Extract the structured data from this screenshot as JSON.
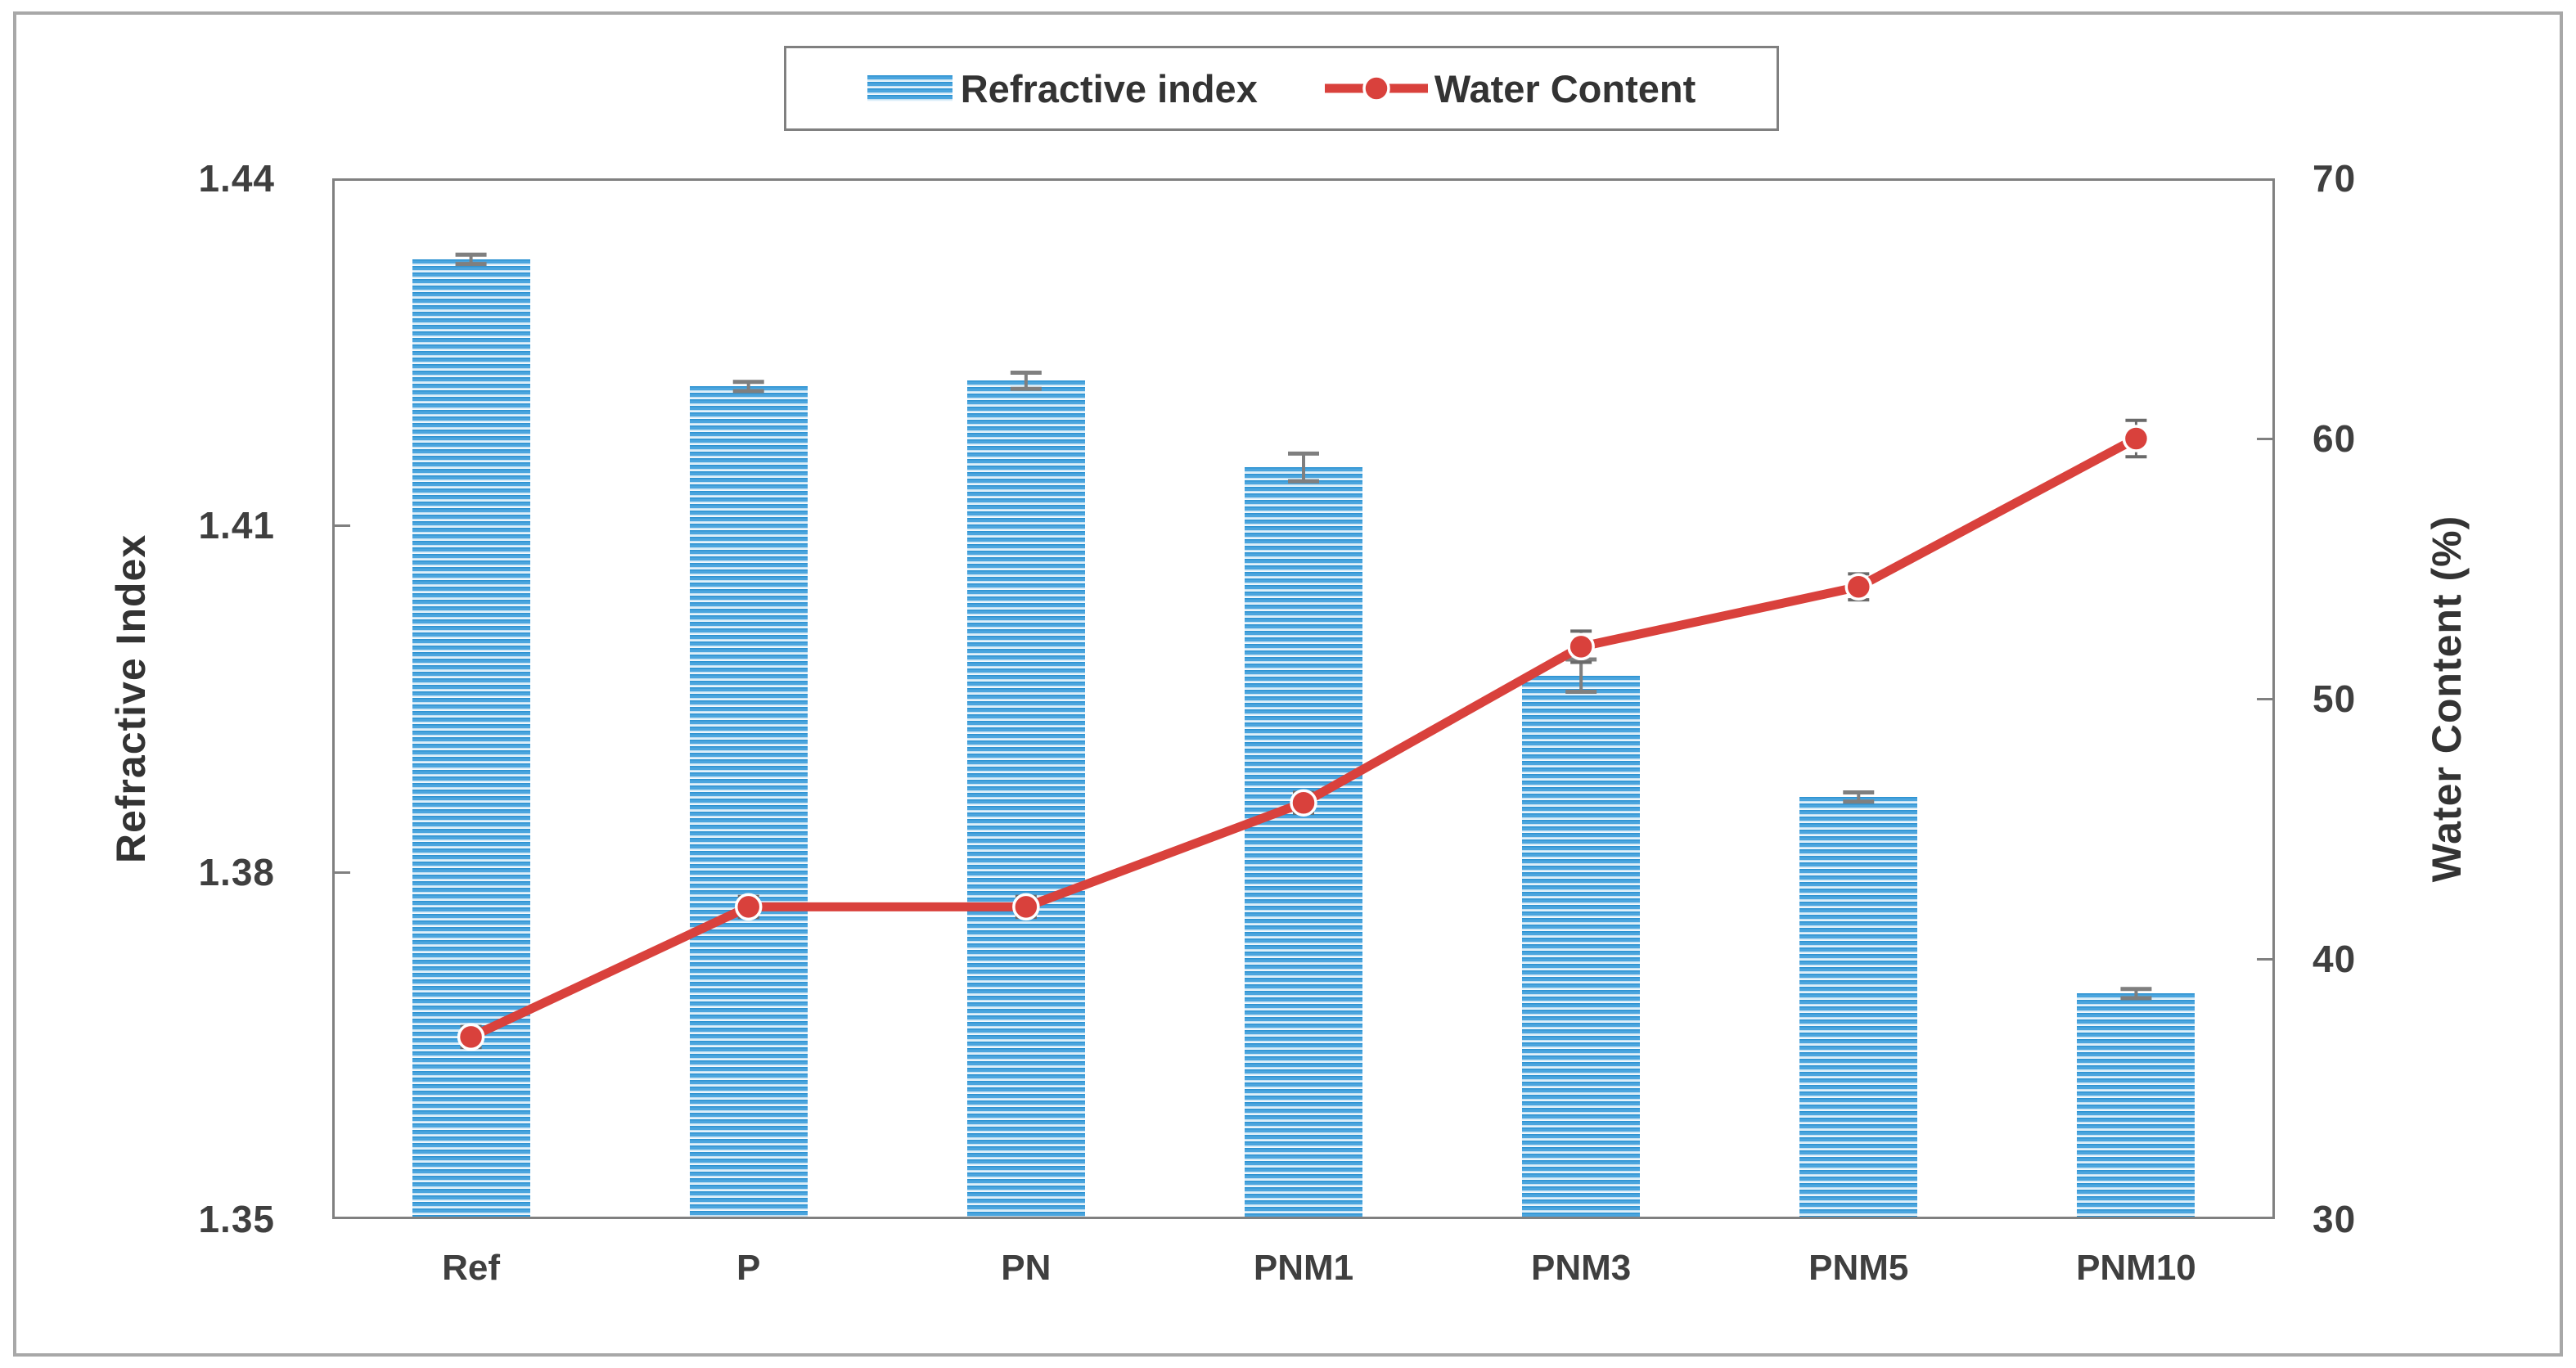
{
  "figure": {
    "background": "#ffffff",
    "outer_border_color": "#a8a8a8",
    "plot_border_color": "#808080",
    "error_bar_color": "#7f7f7f"
  },
  "legend": {
    "position": "top-center",
    "items": [
      {
        "label": "Refractive index",
        "swatch": "blue-striped-bar"
      },
      {
        "label": "Water Content",
        "swatch": "red-line-marker"
      }
    ]
  },
  "chart_data": {
    "type": "combo",
    "subtypes": [
      "bar",
      "line"
    ],
    "categories": [
      "Ref",
      "P",
      "PN",
      "PNM1",
      "PNM3",
      "PNM5",
      "PNM10"
    ],
    "series": [
      {
        "name": "Refractive index",
        "type": "bar",
        "axis": "left",
        "color": "#4ba5de",
        "values": [
          1.433,
          1.422,
          1.4225,
          1.415,
          1.397,
          1.3865,
          1.3695
        ],
        "errors": [
          0.0004,
          0.0004,
          0.0007,
          0.0012,
          0.0014,
          0.0004,
          0.0004
        ]
      },
      {
        "name": "Water Content",
        "type": "line",
        "axis": "right",
        "color": "#d9413c",
        "values": [
          37,
          42,
          42,
          46,
          52,
          54.3,
          60
        ],
        "errors": [
          0.4,
          0.4,
          0.4,
          0.4,
          0.6,
          0.5,
          0.7
        ]
      }
    ],
    "left_axis": {
      "label": "Refractive Index",
      "min": 1.35,
      "max": 1.44,
      "ticks": [
        1.44,
        1.41,
        1.38,
        1.35
      ],
      "tick_labels": [
        "1.44",
        "1.41",
        "1.38",
        "1.35"
      ]
    },
    "right_axis": {
      "label": "Water Content (%)",
      "min": 30,
      "max": 70,
      "ticks": [
        70,
        60,
        50,
        40,
        30
      ],
      "tick_labels": [
        "70",
        "60",
        "50",
        "40",
        "30"
      ]
    },
    "grid": false,
    "legend_position": "top-center"
  }
}
